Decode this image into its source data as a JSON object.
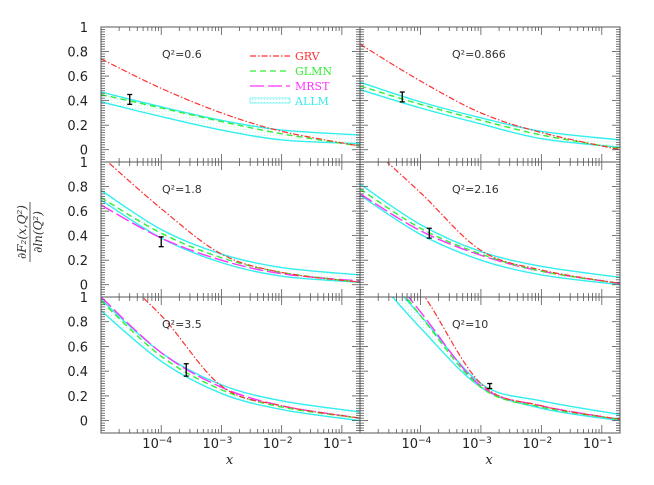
{
  "chart_data": {
    "type": "line",
    "title": "",
    "xlabel": "x",
    "ylabel": "∂F2(x,Q²)/∂ln(Q²)",
    "x_scale": "log",
    "xlim": [
      1e-05,
      0.2
    ],
    "ylim": [
      -0.1,
      1.0
    ],
    "x_tick_labels": [
      "10^-4",
      "10^-3",
      "10^-2",
      "10^-1"
    ],
    "y_tick_labels": [
      "0",
      "0.2",
      "0.4",
      "0.6",
      "0.8",
      "1"
    ],
    "legend": [
      {
        "name": "GRV",
        "color": "#ff3030",
        "style": "dash-dot"
      },
      {
        "name": "GLMN",
        "color": "#33ee33",
        "style": "short-dash"
      },
      {
        "name": "MRST",
        "color": "#ff33ff",
        "style": "long-dash"
      },
      {
        "name": "ALLM",
        "color": "#33eeee",
        "style": "band"
      }
    ],
    "legend_position": "top-left panel, upper right",
    "panels": [
      {
        "label": "Q²=0.6",
        "q2": 0.6,
        "x": [
          1e-05,
          0.0001,
          0.001,
          0.01,
          0.2
        ],
        "GRV": [
          0.74,
          0.5,
          0.3,
          0.15,
          0.03
        ],
        "GLMN": [
          0.45,
          0.34,
          0.23,
          0.13,
          0.03
        ],
        "ALLM_upper": [
          0.47,
          0.35,
          0.24,
          0.16,
          0.12
        ],
        "ALLM_lower": [
          0.39,
          0.27,
          0.16,
          0.08,
          0.05
        ],
        "data_point": {
          "x": 3e-05,
          "y": 0.41,
          "err": 0.04
        }
      },
      {
        "label": "Q²=0.866",
        "q2": 0.866,
        "x": [
          1e-05,
          0.0001,
          0.001,
          0.01,
          0.2
        ],
        "GRV": [
          0.86,
          0.56,
          0.3,
          0.14,
          0.0
        ],
        "GLMN": [
          0.52,
          0.37,
          0.24,
          0.12,
          0.01
        ],
        "ALLM_upper": [
          0.55,
          0.39,
          0.26,
          0.15,
          0.08
        ],
        "ALLM_lower": [
          0.49,
          0.34,
          0.21,
          0.09,
          0.02
        ],
        "data_point": {
          "x": 5e-05,
          "y": 0.43,
          "err": 0.04
        }
      },
      {
        "label": "Q²=1.8",
        "q2": 1.8,
        "x": [
          1e-05,
          0.0001,
          0.001,
          0.01,
          0.2
        ],
        "GRV": [
          1.05,
          0.62,
          0.25,
          0.1,
          0.02
        ],
        "GLMN": [
          0.71,
          0.42,
          0.22,
          0.1,
          0.02
        ],
        "MRST": [
          0.65,
          0.38,
          0.2,
          0.09,
          0.03
        ],
        "ALLM_upper": [
          0.77,
          0.45,
          0.25,
          0.14,
          0.08
        ],
        "ALLM_lower": [
          0.69,
          0.38,
          0.18,
          0.07,
          0.02
        ],
        "data_point": {
          "x": 0.0001,
          "y": 0.35,
          "err": 0.04
        }
      },
      {
        "label": "Q²=2.16",
        "q2": 2.16,
        "x": [
          1e-05,
          0.0001,
          0.001,
          0.01,
          0.2
        ],
        "GRV": [
          1.2,
          0.75,
          0.28,
          0.12,
          0.01
        ],
        "GLMN": [
          0.78,
          0.46,
          0.25,
          0.11,
          0.01
        ],
        "MRST": [
          0.74,
          0.44,
          0.24,
          0.11,
          0.01
        ],
        "ALLM_upper": [
          0.82,
          0.49,
          0.27,
          0.15,
          0.06
        ],
        "ALLM_lower": [
          0.73,
          0.41,
          0.2,
          0.08,
          0.0
        ],
        "data_point": {
          "x": 0.00014,
          "y": 0.42,
          "err": 0.04
        }
      },
      {
        "label": "Q²=3.5",
        "q2": 3.5,
        "x": [
          1e-05,
          0.0001,
          0.001,
          0.01,
          0.2
        ],
        "GRV": [
          1.3,
          0.85,
          0.28,
          0.12,
          0.02
        ],
        "GLMN": [
          0.97,
          0.52,
          0.25,
          0.11,
          0.02
        ],
        "MRST": [
          1.0,
          0.55,
          0.27,
          0.12,
          0.02
        ],
        "ALLM_upper": [
          0.98,
          0.55,
          0.29,
          0.16,
          0.07
        ],
        "ALLM_lower": [
          0.89,
          0.48,
          0.22,
          0.09,
          0.0
        ],
        "data_point": {
          "x": 0.00026,
          "y": 0.41,
          "err": 0.05
        }
      },
      {
        "label": "Q²=10",
        "q2": 10,
        "x": [
          1e-05,
          0.0001,
          0.001,
          0.01,
          0.2
        ],
        "GRV": [
          1.6,
          1.05,
          0.3,
          0.12,
          0.01
        ],
        "GLMN": [
          1.5,
          0.85,
          0.27,
          0.11,
          0.01
        ],
        "MRST": [
          1.5,
          0.88,
          0.28,
          0.12,
          0.01
        ],
        "ALLM_upper": [
          1.4,
          0.85,
          0.3,
          0.16,
          0.05
        ],
        "ALLM_lower": [
          1.3,
          0.75,
          0.27,
          0.1,
          0.0
        ],
        "data_point": {
          "x": 0.0014,
          "y": 0.28,
          "err": 0.02
        }
      }
    ]
  },
  "labels": {
    "xlabel": "x",
    "ylabel_num": "∂F₂(x,Q²)",
    "ylabel_den": "∂ln(Q²)"
  }
}
